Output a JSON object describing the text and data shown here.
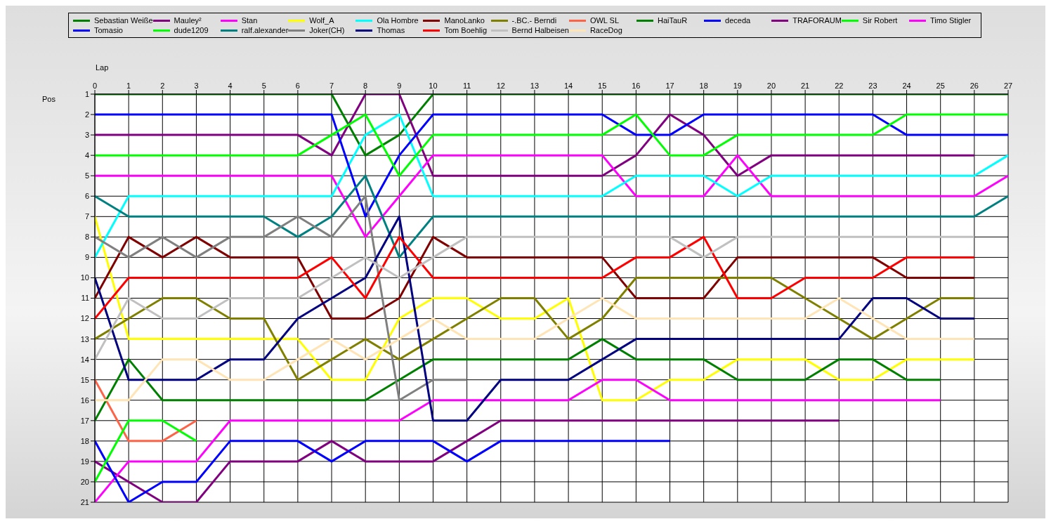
{
  "chart_data": {
    "type": "line",
    "xlabel": "Lap",
    "ylabel": "Pos",
    "x": [
      0,
      1,
      2,
      3,
      4,
      5,
      6,
      7,
      8,
      9,
      10,
      11,
      12,
      13,
      14,
      15,
      16,
      17,
      18,
      19,
      20,
      21,
      22,
      23,
      24,
      25,
      26,
      27
    ],
    "xlim": [
      0,
      27
    ],
    "xticks": [
      0,
      1,
      2,
      3,
      4,
      5,
      6,
      7,
      8,
      9,
      10,
      11,
      12,
      13,
      14,
      15,
      16,
      17,
      18,
      19,
      20,
      21,
      22,
      23,
      24,
      25,
      26,
      27
    ],
    "ylim": [
      21,
      1
    ],
    "yticks": [
      1,
      2,
      3,
      4,
      5,
      6,
      7,
      8,
      9,
      10,
      11,
      12,
      13,
      14,
      15,
      16,
      17,
      18,
      19,
      20,
      21
    ],
    "grid": true,
    "legend": "top",
    "marker": "none",
    "line_style": "solid",
    "series": [
      {
        "name": "Sebastian Weiße",
        "color": "#008000",
        "values": [
          1,
          1,
          1,
          1,
          1,
          1,
          1,
          1,
          4,
          3,
          1,
          1,
          1,
          1,
          1,
          1,
          1,
          1,
          1,
          1,
          1,
          1,
          1,
          1,
          1,
          1,
          1,
          1
        ]
      },
      {
        "name": "Mauley²",
        "color": "#800080",
        "values": [
          3,
          3,
          3,
          3,
          3,
          3,
          3,
          4,
          1,
          1,
          5,
          5,
          5,
          5,
          5,
          5,
          4,
          2,
          3,
          5,
          4,
          4,
          4,
          4,
          4,
          4,
          4,
          null
        ]
      },
      {
        "name": "Stan",
        "color": "#ff00ff",
        "values": [
          5,
          5,
          5,
          5,
          5,
          5,
          5,
          5,
          8,
          6,
          4,
          4,
          4,
          4,
          4,
          4,
          6,
          6,
          6,
          4,
          6,
          6,
          6,
          6,
          6,
          6,
          6,
          5
        ]
      },
      {
        "name": "Wolf_A",
        "color": "#ffff00",
        "values": [
          7,
          13,
          13,
          13,
          13,
          13,
          13,
          15,
          15,
          12,
          11,
          11,
          12,
          12,
          11,
          16,
          16,
          15,
          15,
          14,
          14,
          14,
          15,
          15,
          14,
          14,
          14,
          null
        ]
      },
      {
        "name": "Ola Hombre",
        "color": "#00ffff",
        "values": [
          9,
          6,
          6,
          6,
          6,
          6,
          6,
          6,
          3,
          2,
          6,
          6,
          6,
          6,
          6,
          6,
          5,
          5,
          5,
          6,
          5,
          5,
          5,
          5,
          5,
          5,
          5,
          4
        ]
      },
      {
        "name": "ManoLanko",
        "color": "#800000",
        "values": [
          11,
          8,
          9,
          8,
          9,
          9,
          9,
          12,
          12,
          11,
          8,
          9,
          9,
          9,
          9,
          9,
          11,
          11,
          11,
          9,
          9,
          9,
          9,
          9,
          10,
          10,
          10,
          null
        ]
      },
      {
        "name": "-.BC.- Berndi",
        "color": "#808000",
        "values": [
          13,
          12,
          11,
          11,
          12,
          12,
          15,
          14,
          13,
          14,
          13,
          12,
          11,
          11,
          13,
          12,
          10,
          10,
          10,
          10,
          10,
          11,
          12,
          13,
          12,
          11,
          11,
          null
        ]
      },
      {
        "name": "OWL SL",
        "color": "#ff6347",
        "values": [
          15,
          18,
          18,
          17,
          null,
          null,
          null,
          null,
          null,
          null,
          null,
          null,
          null,
          null,
          null,
          null,
          null,
          null,
          null,
          null,
          null,
          null,
          null,
          null,
          null,
          null,
          null,
          null
        ]
      },
      {
        "name": "HaiTauR",
        "color": "#008000",
        "values": [
          17,
          14,
          16,
          16,
          16,
          16,
          16,
          16,
          16,
          15,
          14,
          14,
          14,
          14,
          14,
          13,
          14,
          14,
          14,
          15,
          15,
          15,
          14,
          14,
          15,
          15,
          null,
          null
        ]
      },
      {
        "name": "deceda",
        "color": "#0000ff",
        "values": [
          2,
          2,
          2,
          2,
          2,
          2,
          2,
          2,
          7,
          4,
          2,
          2,
          2,
          2,
          2,
          2,
          3,
          3,
          2,
          2,
          2,
          2,
          2,
          2,
          3,
          3,
          3,
          3
        ]
      },
      {
        "name": "TRAFORAUM",
        "color": "#800080",
        "values": [
          19,
          20,
          21,
          21,
          19,
          19,
          19,
          18,
          19,
          19,
          19,
          18,
          17,
          17,
          17,
          17,
          17,
          17,
          17,
          17,
          17,
          17,
          17,
          null,
          null,
          null,
          null,
          null
        ]
      },
      {
        "name": "Sir Robert",
        "color": "#00ff00",
        "values": [
          4,
          4,
          4,
          4,
          4,
          4,
          4,
          3,
          2,
          5,
          3,
          3,
          3,
          3,
          3,
          3,
          2,
          4,
          4,
          3,
          3,
          3,
          3,
          3,
          2,
          2,
          2,
          2
        ]
      },
      {
        "name": "Timo Stigler",
        "color": "#ff00ff",
        "values": [
          21,
          19,
          19,
          19,
          17,
          17,
          17,
          17,
          17,
          17,
          16,
          16,
          16,
          16,
          16,
          15,
          15,
          16,
          16,
          16,
          16,
          16,
          16,
          16,
          16,
          16,
          null,
          null
        ]
      },
      {
        "name": "Tomasio",
        "color": "#0000ff",
        "values": [
          18,
          21,
          20,
          20,
          18,
          18,
          18,
          19,
          18,
          18,
          18,
          19,
          18,
          18,
          18,
          18,
          18,
          18,
          null,
          null,
          null,
          null,
          null,
          null,
          null,
          null,
          null,
          null
        ]
      },
      {
        "name": "dude1209",
        "color": "#00ff00",
        "values": [
          20,
          17,
          17,
          18,
          null,
          null,
          null,
          null,
          null,
          null,
          null,
          null,
          null,
          null,
          null,
          null,
          null,
          null,
          null,
          null,
          null,
          null,
          null,
          null,
          null,
          null,
          null,
          null
        ]
      },
      {
        "name": "ralf.alexander",
        "color": "#008080",
        "values": [
          6,
          7,
          7,
          7,
          7,
          7,
          8,
          7,
          5,
          9,
          7,
          7,
          7,
          7,
          7,
          7,
          7,
          7,
          7,
          7,
          7,
          7,
          7,
          7,
          7,
          7,
          7,
          6
        ]
      },
      {
        "name": "Joker(CH)",
        "color": "#808080",
        "values": [
          8,
          9,
          8,
          9,
          8,
          8,
          7,
          8,
          6,
          16,
          15,
          15,
          null,
          null,
          null,
          null,
          null,
          null,
          null,
          null,
          null,
          null,
          null,
          null,
          null,
          null,
          null,
          null
        ]
      },
      {
        "name": "Thomas",
        "color": "#000080",
        "values": [
          10,
          15,
          15,
          15,
          14,
          14,
          12,
          11,
          10,
          7,
          17,
          17,
          15,
          15,
          15,
          14,
          13,
          13,
          13,
          13,
          13,
          13,
          13,
          11,
          11,
          12,
          12,
          null
        ]
      },
      {
        "name": "Tom Boehlig",
        "color": "#ff0000",
        "values": [
          12,
          10,
          10,
          10,
          10,
          10,
          10,
          9,
          11,
          8,
          10,
          10,
          10,
          10,
          10,
          10,
          9,
          9,
          8,
          11,
          11,
          10,
          10,
          10,
          9,
          9,
          9,
          null
        ]
      },
      {
        "name": "Bernd Halbeisen",
        "color": "#c0c0c0",
        "values": [
          14,
          11,
          12,
          12,
          11,
          11,
          11,
          10,
          9,
          10,
          9,
          8,
          8,
          8,
          8,
          8,
          8,
          8,
          9,
          8,
          8,
          8,
          8,
          8,
          8,
          8,
          8,
          null
        ]
      },
      {
        "name": "RaceDog",
        "color": "#ffe4b5",
        "values": [
          16,
          16,
          14,
          14,
          15,
          15,
          14,
          13,
          14,
          13,
          12,
          13,
          13,
          13,
          12,
          11,
          12,
          12,
          12,
          12,
          12,
          12,
          11,
          12,
          13,
          13,
          13,
          null
        ]
      }
    ]
  }
}
